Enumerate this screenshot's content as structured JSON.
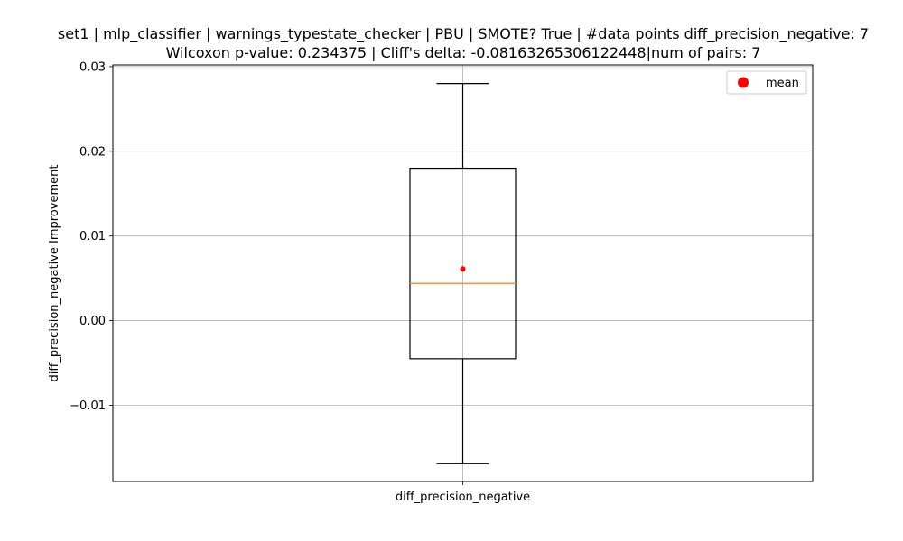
{
  "chart_data": {
    "type": "box",
    "title_line1": "set1 | mlp_classifier | warnings_typestate_checker | PBU | SMOTE? True | #data points diff_precision_negative: 7",
    "title_line2": "Wilcoxon p-value: 0.234375 | Cliff's delta: -0.08163265306122448|num of pairs: 7",
    "xlabel": "",
    "ylabel": "diff_precision_negative Improvement",
    "categories": [
      "diff_precision_negative"
    ],
    "box": {
      "whisker_low": -0.0169,
      "q1": -0.0045,
      "median": 0.0044,
      "q3": 0.018,
      "whisker_high": 0.028,
      "mean": 0.0061
    },
    "ylim": [
      -0.019,
      0.0302
    ],
    "yticks": [
      -0.01,
      0.0,
      0.01,
      0.02,
      0.03
    ],
    "ytick_labels": [
      "−0.01",
      "0.00",
      "0.01",
      "0.02",
      "0.03"
    ],
    "grid": true,
    "legend": {
      "position": "top-right",
      "entries": [
        {
          "label": "mean",
          "color": "#ff0000"
        }
      ]
    },
    "colors": {
      "box": "#000000",
      "median": "#ff7f0e",
      "mean": "#ff0000",
      "grid": "#b0b0b0"
    }
  }
}
